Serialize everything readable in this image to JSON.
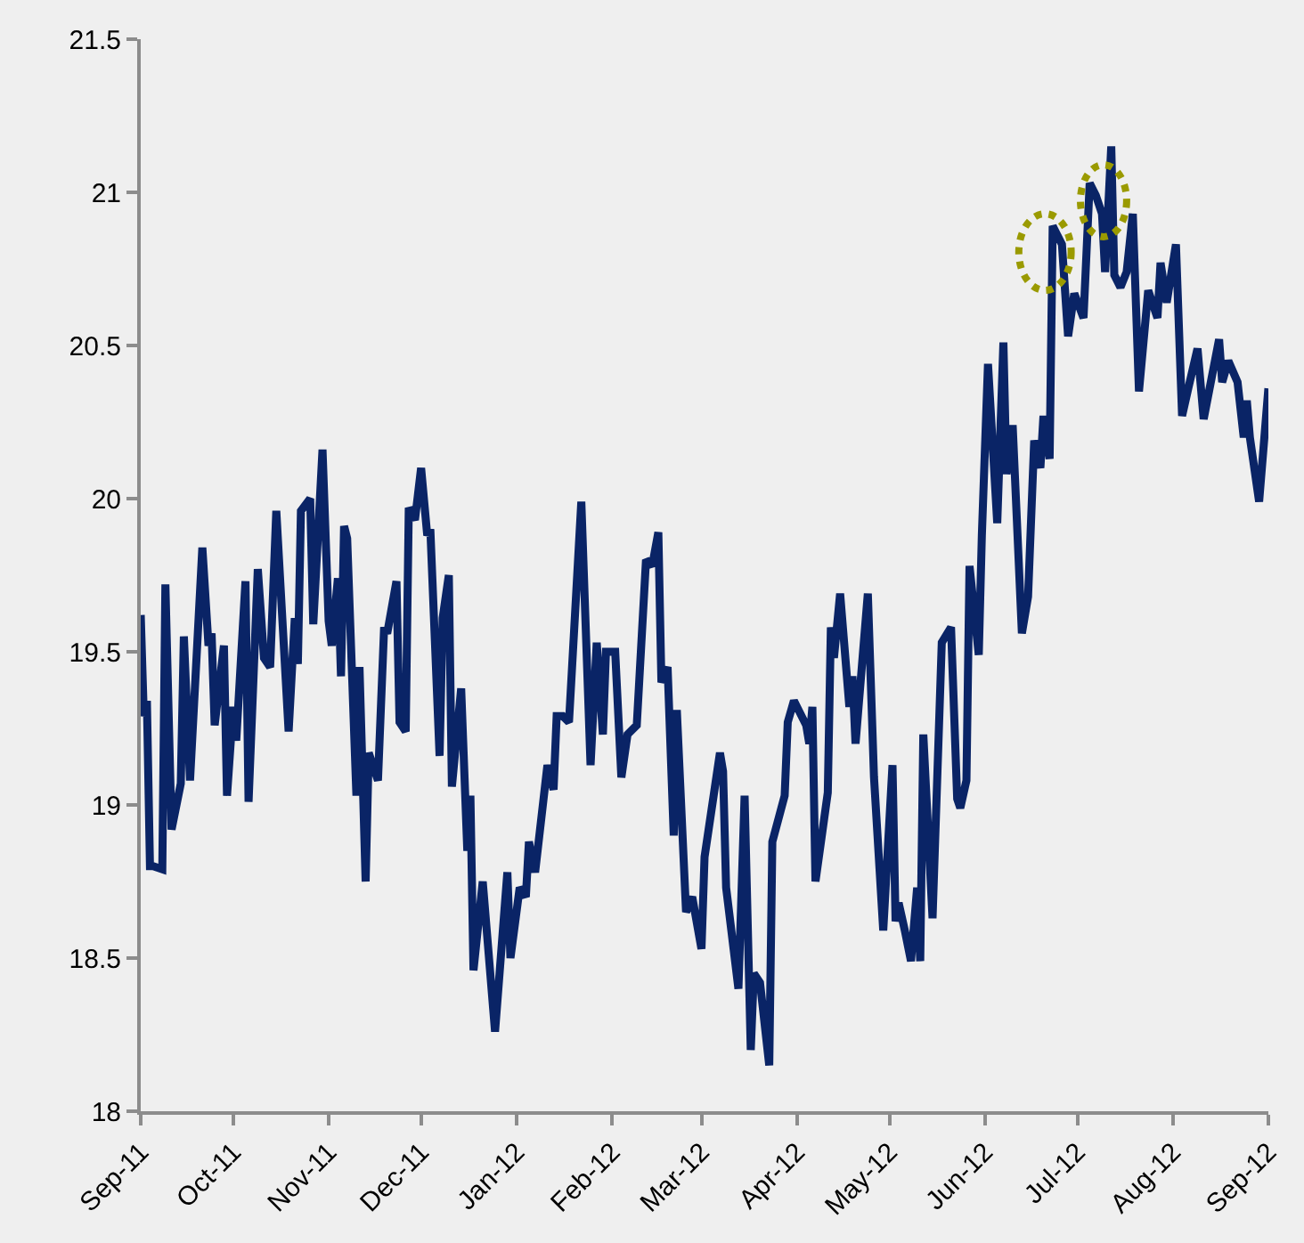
{
  "chart_data": {
    "type": "line",
    "x": [
      "2011-09-01",
      "2011-09-02",
      "2011-09-03",
      "2011-09-04",
      "2011-09-05",
      "2011-09-08",
      "2011-09-09",
      "2011-09-11",
      "2011-09-14",
      "2011-09-15",
      "2011-09-17",
      "2011-09-21",
      "2011-09-23",
      "2011-09-24",
      "2011-09-25",
      "2011-09-28",
      "2011-09-29",
      "2011-10-01",
      "2011-10-02",
      "2011-10-05",
      "2011-10-06",
      "2011-10-09",
      "2011-10-11",
      "2011-10-13",
      "2011-10-15",
      "2011-10-19",
      "2011-10-21",
      "2011-10-22",
      "2011-10-23",
      "2011-10-26",
      "2011-10-27",
      "2011-10-30",
      "2011-11-01",
      "2011-11-02",
      "2011-11-04",
      "2011-11-05",
      "2011-11-06",
      "2011-11-07",
      "2011-11-10",
      "2011-11-11",
      "2011-11-13",
      "2011-11-14",
      "2011-11-17",
      "2011-11-19",
      "2011-11-20",
      "2011-11-23",
      "2011-11-24",
      "2011-11-26",
      "2011-11-27",
      "2011-11-29",
      "2011-12-01",
      "2011-12-03",
      "2011-12-04",
      "2011-12-07",
      "2011-12-08",
      "2011-12-10",
      "2011-12-11",
      "2011-12-14",
      "2011-12-16",
      "2011-12-17",
      "2011-12-18",
      "2011-12-21",
      "2011-12-25",
      "2011-12-29",
      "2011-12-30",
      "2012-01-02",
      "2012-01-04",
      "2012-01-05",
      "2012-01-07",
      "2012-01-11",
      "2012-01-13",
      "2012-01-14",
      "2012-01-16",
      "2012-01-18",
      "2012-01-22",
      "2012-01-25",
      "2012-01-27",
      "2012-01-29",
      "2012-01-30",
      "2012-02-02",
      "2012-02-04",
      "2012-02-06",
      "2012-02-09",
      "2012-02-12",
      "2012-02-14",
      "2012-02-16",
      "2012-02-17",
      "2012-02-19",
      "2012-02-21",
      "2012-02-22",
      "2012-02-25",
      "2012-02-27",
      "2012-03-01",
      "2012-03-02",
      "2012-03-07",
      "2012-03-08",
      "2012-03-09",
      "2012-03-13",
      "2012-03-15",
      "2012-03-17",
      "2012-03-18",
      "2012-03-20",
      "2012-03-23",
      "2012-03-24",
      "2012-03-28",
      "2012-03-29",
      "2012-03-31",
      "2012-04-04",
      "2012-04-05",
      "2012-04-06",
      "2012-04-07",
      "2012-04-11",
      "2012-04-12",
      "2012-04-13",
      "2012-04-15",
      "2012-04-18",
      "2012-04-19",
      "2012-04-20",
      "2012-04-24",
      "2012-04-26",
      "2012-04-29",
      "2012-05-02",
      "2012-05-03",
      "2012-05-04",
      "2012-05-06",
      "2012-05-08",
      "2012-05-10",
      "2012-05-11",
      "2012-05-12",
      "2012-05-15",
      "2012-05-18",
      "2012-05-21",
      "2012-05-23",
      "2012-05-24",
      "2012-05-26",
      "2012-05-27",
      "2012-05-30",
      "2012-05-31",
      "2012-06-02",
      "2012-06-05",
      "2012-06-07",
      "2012-06-08",
      "2012-06-10",
      "2012-06-13",
      "2012-06-15",
      "2012-06-17",
      "2012-06-19",
      "2012-06-20",
      "2012-06-22",
      "2012-06-23",
      "2012-06-26",
      "2012-06-28",
      "2012-06-30",
      "2012-07-03",
      "2012-07-05",
      "2012-07-07",
      "2012-07-09",
      "2012-07-10",
      "2012-07-12",
      "2012-07-13",
      "2012-07-15",
      "2012-07-17",
      "2012-07-19",
      "2012-07-21",
      "2012-07-24",
      "2012-07-27",
      "2012-07-28",
      "2012-07-30",
      "2012-08-02",
      "2012-08-04",
      "2012-08-06",
      "2012-08-09",
      "2012-08-11",
      "2012-08-16",
      "2012-08-17",
      "2012-08-19",
      "2012-08-22",
      "2012-08-24",
      "2012-08-25",
      "2012-08-26",
      "2012-08-29",
      "2012-09-01"
    ],
    "series": [
      {
        "color": "#0a2466",
        "values": [
          19.62,
          19.29,
          19.34,
          18.8,
          18.8,
          18.79,
          19.72,
          18.92,
          19.07,
          19.55,
          19.08,
          19.84,
          19.52,
          19.56,
          19.26,
          19.52,
          19.03,
          19.32,
          19.21,
          19.73,
          19.01,
          19.77,
          19.48,
          19.45,
          19.96,
          19.24,
          19.61,
          19.46,
          19.96,
          20.0,
          19.59,
          20.16,
          19.6,
          19.52,
          19.74,
          19.42,
          19.91,
          19.87,
          19.03,
          19.45,
          18.75,
          19.17,
          19.08,
          19.58,
          19.56,
          19.73,
          19.27,
          19.24,
          19.97,
          19.93,
          20.1,
          19.88,
          19.9,
          19.16,
          19.61,
          19.75,
          19.06,
          19.38,
          18.85,
          19.03,
          18.46,
          18.75,
          18.26,
          18.78,
          18.5,
          18.73,
          18.7,
          18.88,
          18.78,
          19.13,
          19.05,
          19.29,
          19.29,
          19.27,
          19.99,
          19.13,
          19.53,
          19.23,
          19.5,
          19.5,
          19.09,
          19.23,
          19.26,
          19.8,
          19.78,
          19.89,
          19.4,
          19.45,
          18.9,
          19.31,
          18.65,
          18.7,
          18.53,
          18.83,
          19.17,
          19.11,
          18.73,
          18.4,
          19.03,
          18.2,
          18.45,
          18.42,
          18.15,
          18.88,
          19.03,
          19.27,
          19.34,
          19.26,
          19.2,
          19.32,
          18.75,
          19.04,
          19.58,
          19.48,
          19.69,
          19.32,
          19.42,
          19.2,
          19.69,
          19.09,
          18.59,
          19.13,
          18.62,
          18.68,
          18.59,
          18.49,
          18.73,
          18.49,
          19.23,
          18.63,
          19.53,
          19.58,
          19.02,
          18.99,
          19.08,
          19.78,
          19.49,
          19.88,
          20.44,
          19.92,
          20.51,
          20.08,
          20.24,
          19.56,
          19.68,
          20.19,
          20.1,
          20.27,
          20.13,
          20.89,
          20.83,
          20.53,
          20.67,
          20.59,
          21.03,
          20.99,
          20.93,
          20.74,
          21.15,
          20.73,
          20.69,
          20.74,
          20.93,
          20.35,
          20.68,
          20.59,
          20.77,
          20.64,
          20.83,
          20.27,
          20.36,
          20.49,
          20.26,
          20.52,
          20.38,
          20.45,
          20.38,
          20.2,
          20.32,
          20.2,
          19.99,
          20.36
        ]
      }
    ],
    "xlim": [
      "2011-09-01",
      "2012-09-01"
    ],
    "xticks": [
      {
        "value": "2011-09-01",
        "label": "Sep-11"
      },
      {
        "value": "2011-10-01",
        "label": "Oct-11"
      },
      {
        "value": "2011-11-01",
        "label": "Nov-11"
      },
      {
        "value": "2011-12-01",
        "label": "Dec-11"
      },
      {
        "value": "2012-01-01",
        "label": "Jan-12"
      },
      {
        "value": "2012-02-01",
        "label": "Feb-12"
      },
      {
        "value": "2012-03-01",
        "label": "Mar-12"
      },
      {
        "value": "2012-04-01",
        "label": "Apr-12"
      },
      {
        "value": "2012-05-01",
        "label": "May-12"
      },
      {
        "value": "2012-06-01",
        "label": "Jun-12"
      },
      {
        "value": "2012-07-01",
        "label": "Jul-12"
      },
      {
        "value": "2012-08-01",
        "label": "Aug-12"
      },
      {
        "value": "2012-09-01",
        "label": "Sep-12"
      }
    ],
    "ylim": [
      18,
      21.5
    ],
    "yticks": [
      18,
      18.5,
      19,
      19.5,
      20,
      20.5,
      21,
      21.5
    ],
    "grid": false,
    "marker": "none",
    "line_style": "solid"
  }
}
